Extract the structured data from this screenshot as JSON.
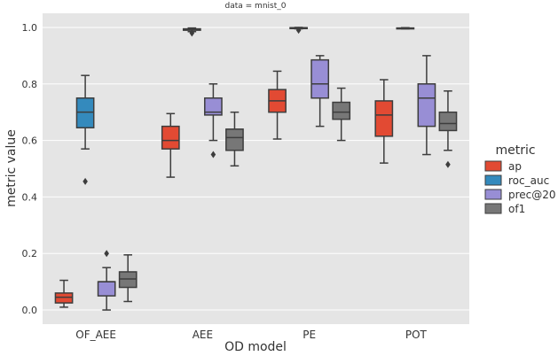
{
  "chart_data": {
    "type": "box",
    "title": "data = mnist_0",
    "xlabel": "OD model",
    "ylabel": "metric value",
    "categories": [
      "OF_AEE",
      "AEE",
      "PE",
      "POT"
    ],
    "ylim": [
      -0.05,
      1.05
    ],
    "yticks": [
      0.0,
      0.2,
      0.4,
      0.6,
      0.8,
      1.0
    ],
    "ytick_labels": [
      "0.0",
      "0.2",
      "0.4",
      "0.6",
      "0.8",
      "1.0"
    ],
    "grid": true,
    "legend": {
      "title": "metric",
      "placement": "right"
    },
    "series": [
      {
        "name": "ap",
        "color": "#E24A33",
        "boxes": [
          {
            "whislo": 0.01,
            "q1": 0.025,
            "med": 0.045,
            "q3": 0.06,
            "whishi": 0.105,
            "fliers": []
          },
          {
            "whislo": 0.47,
            "q1": 0.57,
            "med": 0.6,
            "q3": 0.65,
            "whishi": 0.695,
            "fliers": []
          },
          {
            "whislo": 0.605,
            "q1": 0.7,
            "med": 0.74,
            "q3": 0.78,
            "whishi": 0.845,
            "fliers": []
          },
          {
            "whislo": 0.52,
            "q1": 0.615,
            "med": 0.69,
            "q3": 0.74,
            "whishi": 0.815,
            "fliers": []
          }
        ]
      },
      {
        "name": "roc_auc",
        "color": "#348ABD",
        "boxes": [
          {
            "whislo": 0.57,
            "q1": 0.645,
            "med": 0.7,
            "q3": 0.75,
            "whishi": 0.83,
            "fliers": [
              0.455
            ]
          },
          {
            "whislo": 0.985,
            "q1": 0.99,
            "med": 0.993,
            "q3": 0.995,
            "whishi": 0.998,
            "fliers": [
              0.98
            ]
          },
          {
            "whislo": 0.995,
            "q1": 0.997,
            "med": 0.998,
            "q3": 0.999,
            "whishi": 1.0,
            "fliers": [
              0.99
            ]
          },
          {
            "whislo": 0.995,
            "q1": 0.996,
            "med": 0.997,
            "q3": 0.998,
            "whishi": 0.999,
            "fliers": []
          }
        ]
      },
      {
        "name": "prec@20",
        "color": "#988ED5",
        "boxes": [
          {
            "whislo": 0.0,
            "q1": 0.05,
            "med": 0.1,
            "q3": 0.1,
            "whishi": 0.15,
            "fliers": [
              0.2
            ]
          },
          {
            "whislo": 0.6,
            "q1": 0.69,
            "med": 0.7,
            "q3": 0.75,
            "whishi": 0.8,
            "fliers": [
              0.55
            ]
          },
          {
            "whislo": 0.65,
            "q1": 0.75,
            "med": 0.8,
            "q3": 0.885,
            "whishi": 0.9,
            "fliers": []
          },
          {
            "whislo": 0.55,
            "q1": 0.65,
            "med": 0.75,
            "q3": 0.8,
            "whishi": 0.9,
            "fliers": []
          }
        ]
      },
      {
        "name": "of1",
        "color": "#777777",
        "boxes": [
          {
            "whislo": 0.03,
            "q1": 0.08,
            "med": 0.11,
            "q3": 0.135,
            "whishi": 0.195,
            "fliers": []
          },
          {
            "whislo": 0.51,
            "q1": 0.565,
            "med": 0.61,
            "q3": 0.64,
            "whishi": 0.7,
            "fliers": []
          },
          {
            "whislo": 0.6,
            "q1": 0.675,
            "med": 0.7,
            "q3": 0.735,
            "whishi": 0.785,
            "fliers": []
          },
          {
            "whislo": 0.565,
            "q1": 0.635,
            "med": 0.66,
            "q3": 0.7,
            "whishi": 0.775,
            "fliers": [
              0.515
            ]
          }
        ]
      }
    ]
  }
}
